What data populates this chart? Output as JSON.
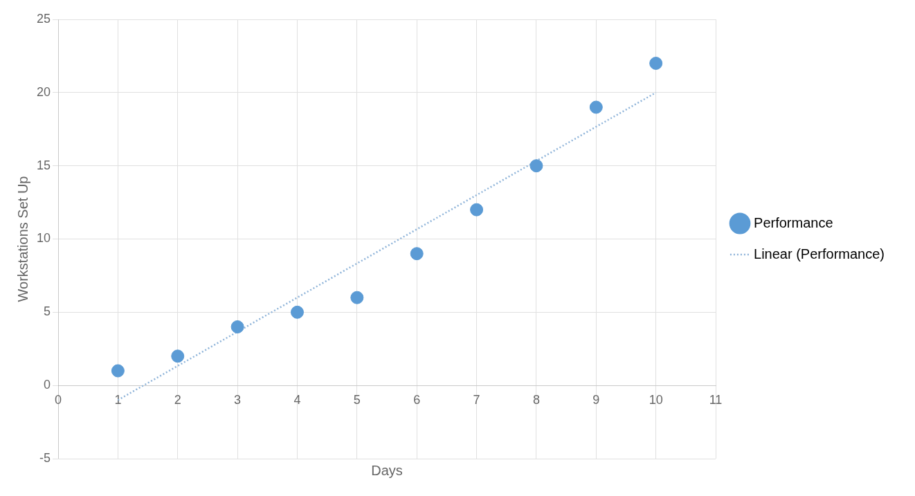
{
  "chart_data": {
    "type": "scatter",
    "xlabel": "Days",
    "ylabel": "Workstations Set Up",
    "x": [
      1,
      2,
      3,
      4,
      5,
      6,
      7,
      8,
      9,
      10
    ],
    "series": [
      {
        "name": "Performance",
        "color": "#5b9bd5",
        "values": [
          1,
          2,
          4,
          5,
          6,
          9,
          12,
          15,
          19,
          22
        ],
        "marker": "circle"
      },
      {
        "name": "Linear (Performance)",
        "type": "line",
        "color": "#8fb4d9",
        "x": [
          1,
          10
        ],
        "values": [
          -1,
          20
        ],
        "line_style": "dotted",
        "marker": "none"
      }
    ],
    "xlim": [
      0,
      11
    ],
    "xticks": [
      0,
      1,
      2,
      3,
      4,
      5,
      6,
      7,
      8,
      9,
      10,
      11
    ],
    "ylim": [
      -5,
      25
    ],
    "yticks": [
      -5,
      0,
      5,
      10,
      15,
      20,
      25
    ],
    "grid": true,
    "legend": "right"
  }
}
